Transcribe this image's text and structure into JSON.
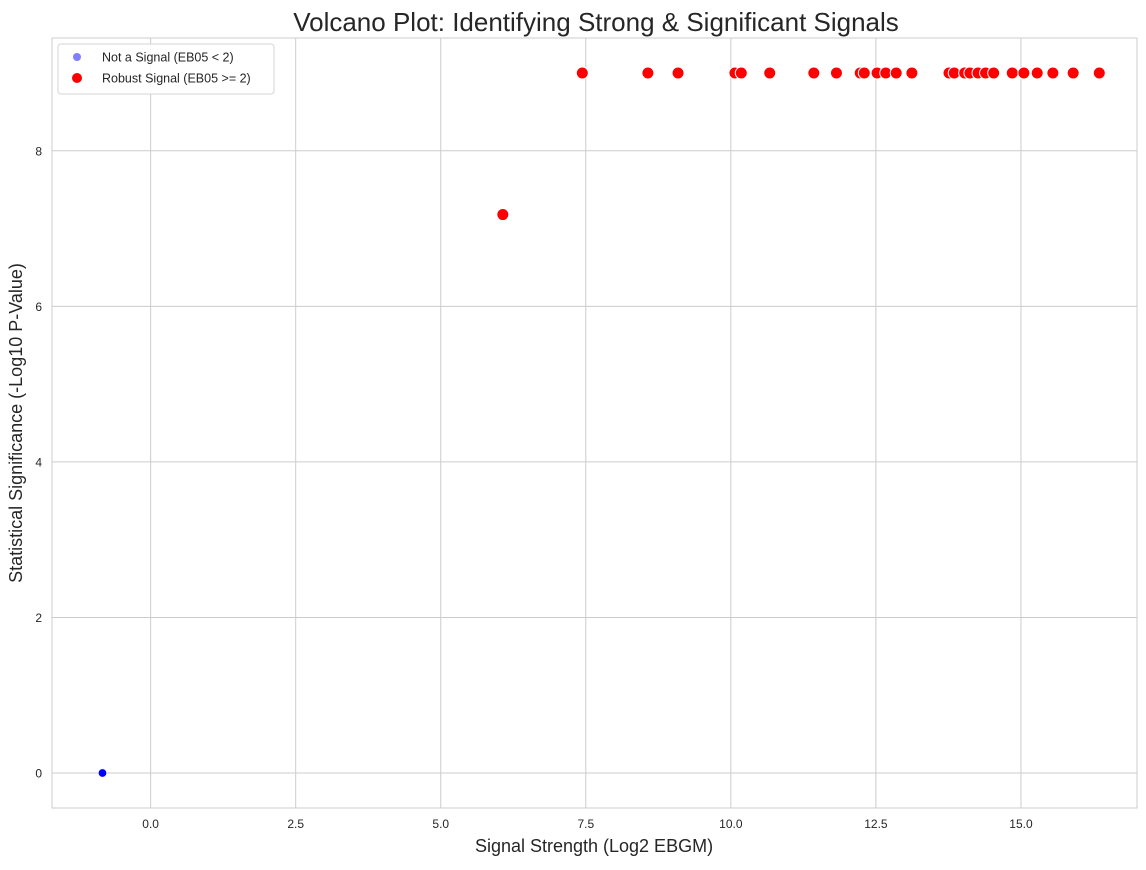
{
  "chart_data": {
    "type": "scatter",
    "title": "Volcano Plot: Identifying Strong & Significant Signals",
    "xlabel": "Signal Strength (Log2 EBGM)",
    "ylabel": "Statistical Significance (-Log10 P-Value)",
    "xlim": [
      -1.7,
      17.0
    ],
    "ylim": [
      -0.45,
      9.45
    ],
    "xticks": [
      0.0,
      2.5,
      5.0,
      7.5,
      10.0,
      12.5,
      15.0
    ],
    "xtick_labels": [
      "0.0",
      "2.5",
      "5.0",
      "7.5",
      "10.0",
      "12.5",
      "15.0"
    ],
    "yticks": [
      0,
      2,
      4,
      6,
      8
    ],
    "ytick_labels": [
      "0",
      "2",
      "4",
      "6",
      "8"
    ],
    "grid": true,
    "legend_position": "top-left",
    "series": [
      {
        "name": "Not a Signal (EB05 < 2)",
        "color": "#0000ff",
        "marker": "circle-small",
        "points": [
          {
            "x": -0.83,
            "y": 0.0
          }
        ]
      },
      {
        "name": "Robust Signal (EB05 >= 2)",
        "color": "#ff0000",
        "marker": "circle-large",
        "points": [
          {
            "x": 6.07,
            "y": 7.18
          },
          {
            "x": 7.44,
            "y": 9.0
          },
          {
            "x": 8.57,
            "y": 9.0
          },
          {
            "x": 9.09,
            "y": 9.0
          },
          {
            "x": 10.07,
            "y": 9.0
          },
          {
            "x": 10.18,
            "y": 9.0
          },
          {
            "x": 10.67,
            "y": 9.0
          },
          {
            "x": 11.43,
            "y": 9.0
          },
          {
            "x": 11.82,
            "y": 9.0
          },
          {
            "x": 12.23,
            "y": 9.0
          },
          {
            "x": 12.3,
            "y": 9.0
          },
          {
            "x": 12.52,
            "y": 9.0
          },
          {
            "x": 12.67,
            "y": 9.0
          },
          {
            "x": 12.85,
            "y": 9.0
          },
          {
            "x": 13.12,
            "y": 9.0
          },
          {
            "x": 13.76,
            "y": 9.0
          },
          {
            "x": 13.85,
            "y": 9.0
          },
          {
            "x": 14.03,
            "y": 9.0
          },
          {
            "x": 14.12,
            "y": 9.0
          },
          {
            "x": 14.26,
            "y": 9.0
          },
          {
            "x": 14.39,
            "y": 9.0
          },
          {
            "x": 14.53,
            "y": 9.0
          },
          {
            "x": 14.85,
            "y": 9.0
          },
          {
            "x": 15.05,
            "y": 9.0
          },
          {
            "x": 15.28,
            "y": 9.0
          },
          {
            "x": 15.55,
            "y": 9.0
          },
          {
            "x": 15.9,
            "y": 9.0
          },
          {
            "x": 16.35,
            "y": 9.0
          }
        ]
      }
    ]
  }
}
